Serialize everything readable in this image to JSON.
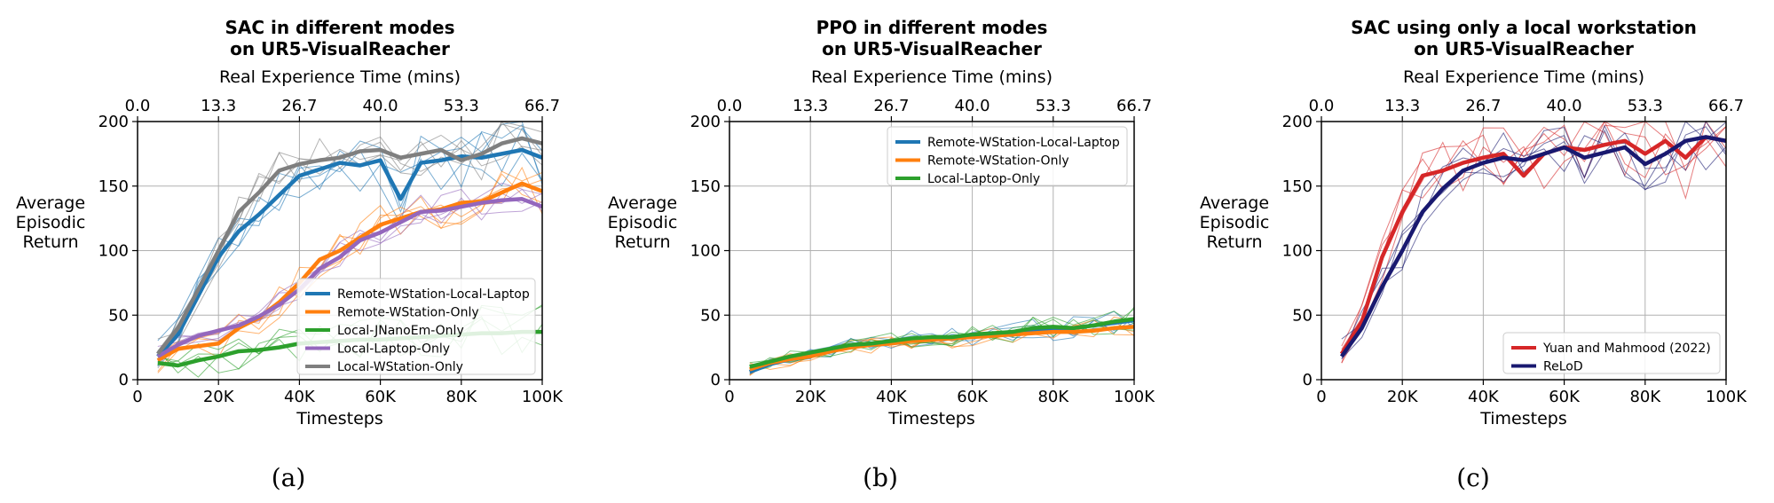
{
  "figure": {
    "captions": [
      "(a)",
      "(b)",
      "(c)"
    ]
  },
  "colors": {
    "blue": "#1f77b4",
    "orange": "#ff7f0e",
    "green": "#2ca02c",
    "purple": "#9467bd",
    "gray": "#7f7f7f",
    "red": "#d62728",
    "navy": "#191970"
  },
  "chart_data": [
    {
      "type": "line",
      "title": [
        "SAC in different modes",
        "on UR5-VisualReacher"
      ],
      "xlabel": "Timesteps",
      "ylabel": [
        "Average",
        "Episodic",
        "Return"
      ],
      "top_xlabel": "Real Experience Time (mins)",
      "xlim": [
        0,
        100000
      ],
      "ylim": [
        0,
        200
      ],
      "x_ticks": [
        0,
        20000,
        40000,
        60000,
        80000,
        100000
      ],
      "x_tick_labels": [
        "0",
        "20K",
        "40K",
        "60K",
        "80K",
        "100K"
      ],
      "y_ticks": [
        0,
        50,
        100,
        150,
        200
      ],
      "y_tick_labels": [
        "0",
        "50",
        "100",
        "150",
        "200"
      ],
      "top_ticks": [
        0,
        13.3,
        26.7,
        40.0,
        53.3,
        66.7
      ],
      "top_tick_labels": [
        "0.0",
        "13.3",
        "26.7",
        "40.0",
        "53.3",
        "66.7"
      ],
      "grid": true,
      "legend_position": "lower-right",
      "x": [
        5000,
        10000,
        15000,
        20000,
        25000,
        30000,
        35000,
        40000,
        45000,
        50000,
        55000,
        60000,
        65000,
        70000,
        75000,
        80000,
        85000,
        90000,
        95000,
        100000
      ],
      "series": [
        {
          "name": "Remote-WStation-Local-Laptop",
          "color": "#1f77b4",
          "values": [
            18,
            35,
            65,
            95,
            115,
            128,
            143,
            158,
            163,
            168,
            166,
            170,
            140,
            168,
            170,
            173,
            172,
            175,
            178,
            172
          ]
        },
        {
          "name": "Remote-WStation-Only",
          "color": "#ff7f0e",
          "values": [
            15,
            24,
            26,
            28,
            40,
            48,
            60,
            75,
            93,
            100,
            110,
            120,
            125,
            130,
            132,
            137,
            138,
            145,
            152,
            146
          ]
        },
        {
          "name": "Local-JNanoEm-Only",
          "color": "#2ca02c",
          "values": [
            13,
            11,
            15,
            18,
            22,
            23,
            25,
            28,
            29,
            30,
            31,
            31,
            32,
            33,
            34,
            35,
            36,
            36,
            37,
            37
          ]
        },
        {
          "name": "Local-Laptop-Only",
          "color": "#9467bd",
          "values": [
            18,
            27,
            34,
            38,
            42,
            49,
            58,
            70,
            86,
            95,
            108,
            114,
            122,
            130,
            131,
            134,
            137,
            139,
            140,
            134
          ]
        },
        {
          "name": "Local-WStation-Only",
          "color": "#7f7f7f",
          "values": [
            20,
            40,
            70,
            100,
            130,
            145,
            162,
            167,
            170,
            172,
            177,
            178,
            172,
            175,
            178,
            170,
            175,
            183,
            187,
            183
          ]
        }
      ]
    },
    {
      "type": "line",
      "title": [
        "PPO in different modes",
        "on UR5-VisualReacher"
      ],
      "xlabel": "Timesteps",
      "ylabel": [
        "Average",
        "Episodic",
        "Return"
      ],
      "top_xlabel": "Real Experience Time (mins)",
      "xlim": [
        0,
        100000
      ],
      "ylim": [
        0,
        200
      ],
      "x_ticks": [
        0,
        20000,
        40000,
        60000,
        80000,
        100000
      ],
      "x_tick_labels": [
        "0",
        "20K",
        "40K",
        "60K",
        "80K",
        "100K"
      ],
      "y_ticks": [
        0,
        50,
        100,
        150,
        200
      ],
      "y_tick_labels": [
        "0",
        "50",
        "100",
        "150",
        "200"
      ],
      "top_ticks": [
        0,
        13.3,
        26.7,
        40.0,
        53.3,
        66.7
      ],
      "top_tick_labels": [
        "0.0",
        "13.3",
        "26.7",
        "40.0",
        "53.3",
        "66.7"
      ],
      "grid": true,
      "legend_position": "top-right",
      "x": [
        5000,
        10000,
        15000,
        20000,
        25000,
        30000,
        35000,
        40000,
        45000,
        50000,
        55000,
        60000,
        65000,
        70000,
        75000,
        80000,
        85000,
        90000,
        95000,
        100000
      ],
      "series": [
        {
          "name": "Remote-WStation-Local-Laptop",
          "color": "#1f77b4",
          "values": [
            6,
            12,
            16,
            19,
            22,
            26,
            28,
            29,
            31,
            33,
            33,
            34,
            35,
            37,
            39,
            39,
            40,
            42,
            44,
            46
          ]
        },
        {
          "name": "Remote-WStation-Only",
          "color": "#ff7f0e",
          "values": [
            8,
            13,
            16,
            18,
            22,
            25,
            27,
            28,
            30,
            31,
            32,
            33,
            34,
            35,
            36,
            37,
            37,
            38,
            40,
            41
          ]
        },
        {
          "name": "Local-Laptop-Only",
          "color": "#2ca02c",
          "values": [
            10,
            14,
            18,
            21,
            24,
            27,
            28,
            30,
            32,
            33,
            33,
            35,
            36,
            37,
            40,
            41,
            40,
            42,
            45,
            47
          ]
        }
      ]
    },
    {
      "type": "line",
      "title": [
        "SAC using only a local workstation",
        "on UR5-VisualReacher"
      ],
      "xlabel": "Timesteps",
      "ylabel": [
        "Average",
        "Episodic",
        "Return"
      ],
      "top_xlabel": "Real Experience Time (mins)",
      "xlim": [
        0,
        100000
      ],
      "ylim": [
        0,
        200
      ],
      "x_ticks": [
        0,
        20000,
        40000,
        60000,
        80000,
        100000
      ],
      "x_tick_labels": [
        "0",
        "20K",
        "40K",
        "60K",
        "80K",
        "100K"
      ],
      "y_ticks": [
        0,
        50,
        100,
        150,
        200
      ],
      "y_tick_labels": [
        "0",
        "50",
        "100",
        "150",
        "200"
      ],
      "top_ticks": [
        0,
        13.3,
        26.7,
        40.0,
        53.3,
        66.7
      ],
      "top_tick_labels": [
        "0.0",
        "13.3",
        "26.7",
        "40.0",
        "53.3",
        "66.7"
      ],
      "grid": true,
      "legend_position": "lower-right",
      "x": [
        5000,
        10000,
        15000,
        20000,
        25000,
        30000,
        35000,
        40000,
        45000,
        50000,
        55000,
        60000,
        65000,
        70000,
        75000,
        80000,
        85000,
        90000,
        95000,
        100000
      ],
      "series": [
        {
          "name": "Yuan and Mahmood (2022)",
          "color": "#d62728",
          "values": [
            20,
            45,
            95,
            130,
            158,
            162,
            168,
            172,
            175,
            158,
            175,
            180,
            178,
            182,
            185,
            175,
            185,
            172,
            188,
            185
          ]
        },
        {
          "name": "ReLoD",
          "color": "#191970",
          "values": [
            18,
            40,
            72,
            100,
            130,
            148,
            162,
            168,
            172,
            170,
            175,
            180,
            172,
            176,
            180,
            167,
            175,
            185,
            188,
            185
          ]
        }
      ]
    }
  ]
}
